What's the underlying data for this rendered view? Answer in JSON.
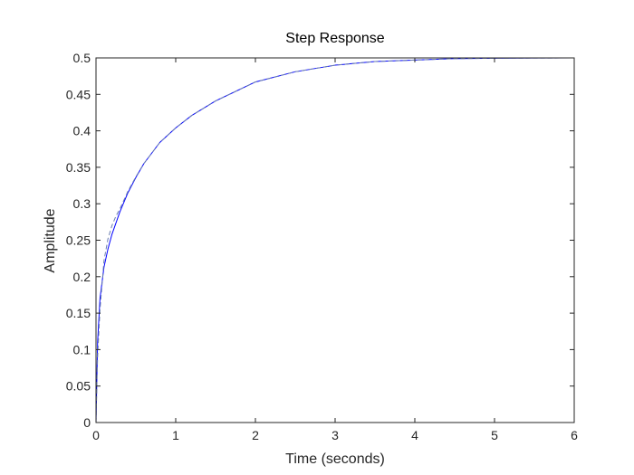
{
  "chart_data": {
    "type": "line",
    "title": "Step Response",
    "xlabel": "Time (seconds)",
    "ylabel": "Amplitude",
    "xlim": [
      0,
      6
    ],
    "ylim": [
      0,
      0.5
    ],
    "xticks": [
      "0",
      "1",
      "2",
      "3",
      "4",
      "5",
      "6"
    ],
    "yticks": [
      "0",
      "0.05",
      "0.1",
      "0.15",
      "0.2",
      "0.25",
      "0.3",
      "0.35",
      "0.4",
      "0.45",
      "0.5"
    ],
    "grid": false,
    "series": [
      {
        "style": "solid",
        "color": "#0000ff",
        "x": [
          0,
          0.02,
          0.05,
          0.1,
          0.15,
          0.2,
          0.3,
          0.4,
          0.5,
          0.6,
          0.8,
          1.0,
          1.2,
          1.5,
          2.0,
          2.5,
          3.0,
          3.5,
          4.0,
          4.5,
          5.0,
          5.5,
          6.0
        ],
        "y": [
          0,
          0.11,
          0.17,
          0.213,
          0.238,
          0.258,
          0.289,
          0.315,
          0.336,
          0.355,
          0.384,
          0.404,
          0.421,
          0.441,
          0.467,
          0.481,
          0.49,
          0.495,
          0.497,
          0.499,
          0.4995,
          0.4998,
          0.5
        ]
      },
      {
        "style": "dashed",
        "color": "#6b7fb0",
        "x": [
          0,
          0.02,
          0.05,
          0.1,
          0.15,
          0.2,
          0.25,
          0.3,
          0.4,
          0.5,
          0.6,
          0.8,
          1.0,
          1.2,
          1.5,
          2.0,
          2.5,
          3.0,
          3.5,
          4.0,
          4.5,
          5.0,
          5.5,
          6.0
        ],
        "y": [
          0,
          0.09,
          0.155,
          0.222,
          0.252,
          0.27,
          0.283,
          0.293,
          0.317,
          0.337,
          0.355,
          0.384,
          0.404,
          0.421,
          0.441,
          0.467,
          0.481,
          0.49,
          0.495,
          0.497,
          0.499,
          0.4995,
          0.4998,
          0.5
        ]
      },
      {
        "style": "dotted",
        "color": "#000000",
        "x": [
          0,
          6
        ],
        "y": [
          0.5,
          0.5
        ]
      }
    ]
  }
}
